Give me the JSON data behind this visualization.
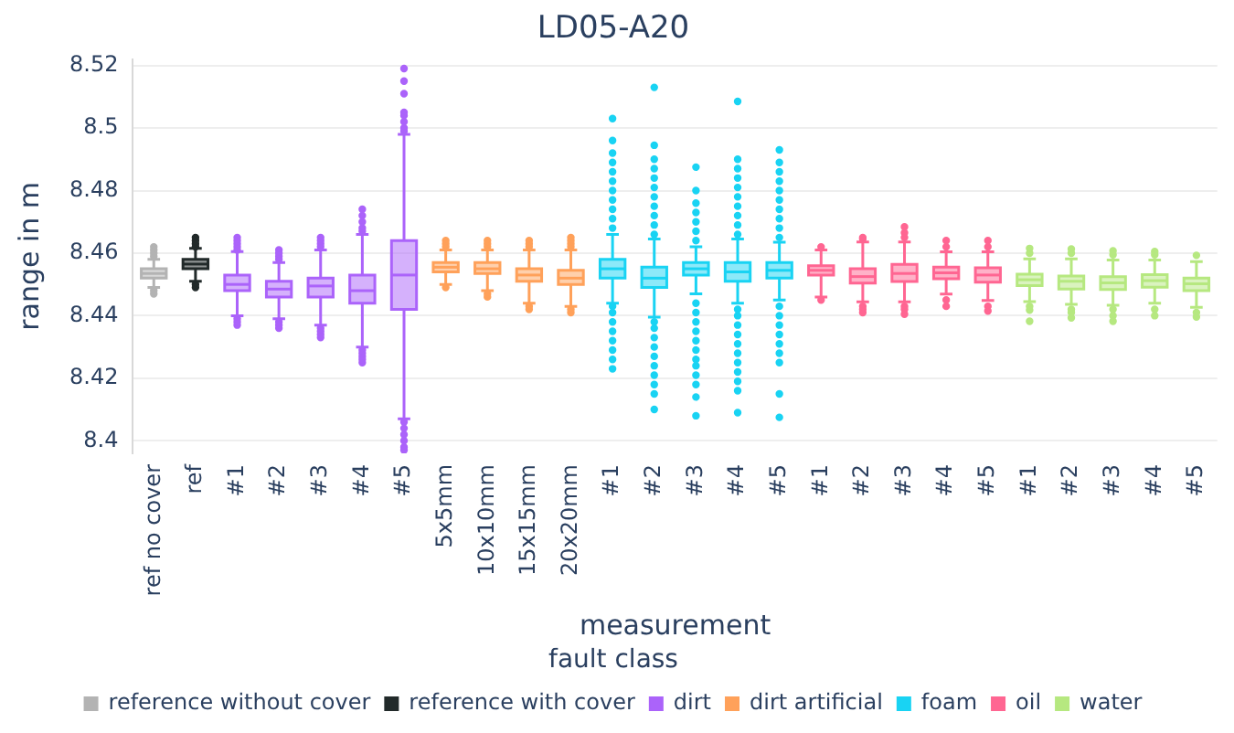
{
  "chart_data": {
    "type": "box",
    "title": "LD05-A20",
    "xlabel": "measurement",
    "ylabel": "range in m",
    "legend_title": "fault class",
    "categories": [
      "ref no cover",
      "ref",
      "#1",
      "#2",
      "#3",
      "#4",
      "#5",
      "5x5mm",
      "10x10mm",
      "15x15mm",
      "20x20mm",
      "#1",
      "#2",
      "#3",
      "#4",
      "#5",
      "#1",
      "#2",
      "#3",
      "#4",
      "#5",
      "#1",
      "#2",
      "#3",
      "#4",
      "#5"
    ],
    "ylim": [
      8.396,
      8.522
    ],
    "yticks": [
      8.4,
      8.42,
      8.44,
      8.46,
      8.48,
      8.5,
      8.52
    ],
    "grid": "y",
    "legend": "bottom",
    "series": [
      {
        "name": "reference without cover",
        "color": "#b3b3b3",
        "boxes": [
          {
            "low": 8.449,
            "q1": 8.452,
            "median": 8.4535,
            "q3": 8.455,
            "high": 8.458,
            "outliers": [
              8.447,
              8.448,
              8.459,
              8.46,
              8.461,
              8.462
            ]
          },
          null,
          null,
          null,
          null,
          null,
          null,
          null,
          null,
          null,
          null,
          null,
          null,
          null,
          null,
          null,
          null,
          null,
          null,
          null,
          null,
          null,
          null,
          null,
          null,
          null
        ]
      },
      {
        "name": "reference with cover",
        "color": "#222a2a",
        "boxes": [
          null,
          {
            "low": 8.451,
            "q1": 8.455,
            "median": 8.4565,
            "q3": 8.458,
            "high": 8.4615,
            "outliers": [
              8.449,
              8.45,
              8.462,
              8.463,
              8.464,
              8.465
            ]
          },
          null,
          null,
          null,
          null,
          null,
          null,
          null,
          null,
          null,
          null,
          null,
          null,
          null,
          null,
          null,
          null,
          null,
          null,
          null,
          null,
          null,
          null,
          null,
          null
        ]
      },
      {
        "name": "dirt",
        "color": "#ab63fa",
        "boxes": [
          null,
          null,
          {
            "low": 8.44,
            "q1": 8.448,
            "median": 8.45,
            "q3": 8.453,
            "high": 8.4605,
            "outliers": [
              8.437,
              8.438,
              8.439,
              8.461,
              8.462,
              8.463,
              8.464,
              8.465
            ]
          },
          {
            "low": 8.439,
            "q1": 8.446,
            "median": 8.4485,
            "q3": 8.451,
            "high": 8.457,
            "outliers": [
              8.436,
              8.437,
              8.438,
              8.458,
              8.459,
              8.46,
              8.461
            ]
          },
          {
            "low": 8.437,
            "q1": 8.446,
            "median": 8.4495,
            "q3": 8.452,
            "high": 8.461,
            "outliers": [
              8.433,
              8.434,
              8.435,
              8.436,
              8.462,
              8.463,
              8.464,
              8.465
            ]
          },
          {
            "low": 8.43,
            "q1": 8.444,
            "median": 8.448,
            "q3": 8.453,
            "high": 8.466,
            "outliers": [
              8.425,
              8.426,
              8.427,
              8.428,
              8.429,
              8.467,
              8.468,
              8.47,
              8.472,
              8.474
            ]
          },
          {
            "low": 8.407,
            "q1": 8.442,
            "median": 8.453,
            "q3": 8.464,
            "high": 8.498,
            "outliers": [
              8.397,
              8.398,
              8.4,
              8.402,
              8.404,
              8.406,
              8.499,
              8.5,
              8.502,
              8.504,
              8.505,
              8.511,
              8.515,
              8.519
            ]
          },
          null,
          null,
          null,
          null,
          null,
          null,
          null,
          null,
          null,
          null,
          null,
          null,
          null,
          null,
          null,
          null,
          null,
          null,
          null
        ]
      },
      {
        "name": "dirt artificial",
        "color": "#ffa15a",
        "boxes": [
          null,
          null,
          null,
          null,
          null,
          null,
          null,
          {
            "low": 8.45,
            "q1": 8.454,
            "median": 8.4555,
            "q3": 8.457,
            "high": 8.461,
            "outliers": [
              8.449,
              8.462,
              8.463,
              8.464
            ]
          },
          {
            "low": 8.448,
            "q1": 8.4535,
            "median": 8.455,
            "q3": 8.457,
            "high": 8.461,
            "outliers": [
              8.446,
              8.447,
              8.462,
              8.463,
              8.464
            ]
          },
          {
            "low": 8.444,
            "q1": 8.451,
            "median": 8.453,
            "q3": 8.455,
            "high": 8.461,
            "outliers": [
              8.442,
              8.443,
              8.462,
              8.463,
              8.464
            ]
          },
          {
            "low": 8.443,
            "q1": 8.45,
            "median": 8.452,
            "q3": 8.4545,
            "high": 8.461,
            "outliers": [
              8.441,
              8.442,
              8.462,
              8.463,
              8.464,
              8.465
            ]
          },
          null,
          null,
          null,
          null,
          null,
          null,
          null,
          null,
          null,
          null,
          null,
          null,
          null,
          null,
          null
        ]
      },
      {
        "name": "foam",
        "color": "#19d3f3",
        "boxes": [
          null,
          null,
          null,
          null,
          null,
          null,
          null,
          null,
          null,
          null,
          null,
          {
            "low": 8.444,
            "q1": 8.452,
            "median": 8.455,
            "q3": 8.458,
            "high": 8.466,
            "outliers": [
              8.423,
              8.426,
              8.429,
              8.432,
              8.435,
              8.438,
              8.441,
              8.443,
              8.468,
              8.471,
              8.474,
              8.477,
              8.48,
              8.483,
              8.486,
              8.489,
              8.492,
              8.496,
              8.503
            ]
          },
          {
            "low": 8.4395,
            "q1": 8.449,
            "median": 8.452,
            "q3": 8.4555,
            "high": 8.4645,
            "outliers": [
              8.41,
              8.415,
              8.418,
              8.421,
              8.424,
              8.427,
              8.43,
              8.433,
              8.436,
              8.438,
              8.466,
              8.469,
              8.472,
              8.475,
              8.478,
              8.481,
              8.484,
              8.487,
              8.49,
              8.4945,
              8.513
            ]
          },
          {
            "low": 8.447,
            "q1": 8.453,
            "median": 8.455,
            "q3": 8.457,
            "high": 8.462,
            "outliers": [
              8.408,
              8.414,
              8.418,
              8.421,
              8.424,
              8.426,
              8.429,
              8.432,
              8.435,
              8.438,
              8.441,
              8.444,
              8.464,
              8.467,
              8.47,
              8.473,
              8.476,
              8.48,
              8.4875
            ]
          },
          {
            "low": 8.444,
            "q1": 8.451,
            "median": 8.454,
            "q3": 8.457,
            "high": 8.4645,
            "outliers": [
              8.409,
              8.416,
              8.419,
              8.422,
              8.425,
              8.428,
              8.431,
              8.434,
              8.437,
              8.44,
              8.442,
              8.466,
              8.469,
              8.472,
              8.475,
              8.478,
              8.481,
              8.484,
              8.487,
              8.49,
              8.5085
            ]
          },
          {
            "low": 8.445,
            "q1": 8.452,
            "median": 8.4545,
            "q3": 8.457,
            "high": 8.4635,
            "outliers": [
              8.4075,
              8.415,
              8.425,
              8.428,
              8.431,
              8.434,
              8.437,
              8.44,
              8.443,
              8.465,
              8.468,
              8.471,
              8.474,
              8.477,
              8.48,
              8.483,
              8.486,
              8.489,
              8.493
            ]
          },
          null,
          null,
          null,
          null,
          null,
          null,
          null,
          null,
          null,
          null
        ]
      },
      {
        "name": "oil",
        "color": "#ff6692",
        "boxes": [
          null,
          null,
          null,
          null,
          null,
          null,
          null,
          null,
          null,
          null,
          null,
          null,
          null,
          null,
          null,
          null,
          {
            "low": 8.446,
            "q1": 8.453,
            "median": 8.4545,
            "q3": 8.456,
            "high": 8.461,
            "outliers": [
              8.445,
              8.462
            ]
          },
          {
            "low": 8.4444,
            "q1": 8.4504,
            "median": 8.4525,
            "q3": 8.455,
            "high": 8.4636,
            "outliers": [
              8.441,
              8.442,
              8.443,
              8.4645,
              8.465
            ]
          },
          {
            "low": 8.4444,
            "q1": 8.4509,
            "median": 8.4535,
            "q3": 8.4564,
            "high": 8.4636,
            "outliers": [
              8.4405,
              8.442,
              8.443,
              8.465,
              8.4665,
              8.4684
            ]
          },
          {
            "low": 8.4469,
            "q1": 8.4518,
            "median": 8.4537,
            "q3": 8.4555,
            "high": 8.4604,
            "outliers": [
              8.443,
              8.445,
              8.462,
              8.464
            ]
          },
          {
            "low": 8.4449,
            "q1": 8.4507,
            "median": 8.453,
            "q3": 8.4553,
            "high": 8.4604,
            "outliers": [
              8.4415,
              8.443,
              8.462,
              8.464
            ]
          },
          null,
          null,
          null,
          null,
          null
        ]
      },
      {
        "name": "water",
        "color": "#b6e880",
        "boxes": [
          null,
          null,
          null,
          null,
          null,
          null,
          null,
          null,
          null,
          null,
          null,
          null,
          null,
          null,
          null,
          null,
          null,
          null,
          null,
          null,
          null,
          {
            "low": 8.4445,
            "q1": 8.4496,
            "median": 8.4515,
            "q3": 8.4533,
            "high": 8.4582,
            "outliers": [
              8.4382,
              8.4418,
              8.443,
              8.46,
              8.4615
            ]
          },
          {
            "low": 8.4436,
            "q1": 8.4485,
            "median": 8.451,
            "q3": 8.4527,
            "high": 8.4582,
            "outliers": [
              8.4393,
              8.441,
              8.442,
              8.46,
              8.4613
            ]
          },
          {
            "low": 8.4433,
            "q1": 8.4484,
            "median": 8.4505,
            "q3": 8.4525,
            "high": 8.4578,
            "outliers": [
              8.4382,
              8.44,
              8.442,
              8.4595,
              8.4607
            ]
          },
          {
            "low": 8.444,
            "q1": 8.4491,
            "median": 8.4512,
            "q3": 8.4531,
            "high": 8.4578,
            "outliers": [
              8.44,
              8.442,
              8.4595,
              8.4605
            ]
          },
          {
            "low": 8.4427,
            "q1": 8.448,
            "median": 8.4502,
            "q3": 8.452,
            "high": 8.4573,
            "outliers": [
              8.4396,
              8.441,
              8.4593
            ]
          }
        ]
      }
    ]
  }
}
